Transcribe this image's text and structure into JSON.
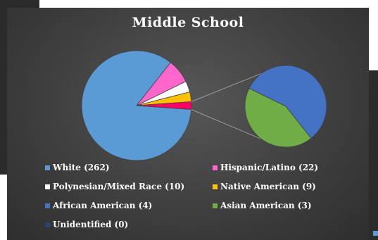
{
  "chart_data": {
    "type": "pie",
    "subtype": "pie-of-pie",
    "title": "Middle School",
    "slices": [
      {
        "label": "White",
        "value": 262,
        "color": "#5b9bd5"
      },
      {
        "label": "Hispanic/Latino",
        "value": 22,
        "color": "#ff66cc"
      },
      {
        "label": "Polynesian/Mixed Race",
        "value": 10,
        "color": "#ffffff"
      },
      {
        "label": "Native American",
        "value": 9,
        "color": "#ffc000"
      },
      {
        "label": "African American",
        "value": 4,
        "color": "#4472c4"
      },
      {
        "label": "Asian American",
        "value": 3,
        "color": "#70ad47"
      },
      {
        "label": "Unidentified",
        "value": 0,
        "color": "#264478"
      }
    ],
    "secondary_pie_labels": [
      "African American",
      "Asian American",
      "Unidentified"
    ],
    "legend": [
      {
        "text": "White (262)",
        "color": "#5b9bd5"
      },
      {
        "text": "Hispanic/Latino (22)",
        "color": "#ff66cc"
      },
      {
        "text": "Polynesian/Mixed Race (10)",
        "color": "#ffffff"
      },
      {
        "text": "Native American (9)",
        "color": "#ffc000"
      },
      {
        "text": "African American (4)",
        "color": "#4472c4"
      },
      {
        "text": "Asian American (3)",
        "color": "#70ad47"
      },
      {
        "text": "Unidentified (0)",
        "color": "#264478"
      }
    ],
    "legend_placement": "bottom",
    "background": "#404040",
    "other_slice_color": "#ff0066"
  }
}
